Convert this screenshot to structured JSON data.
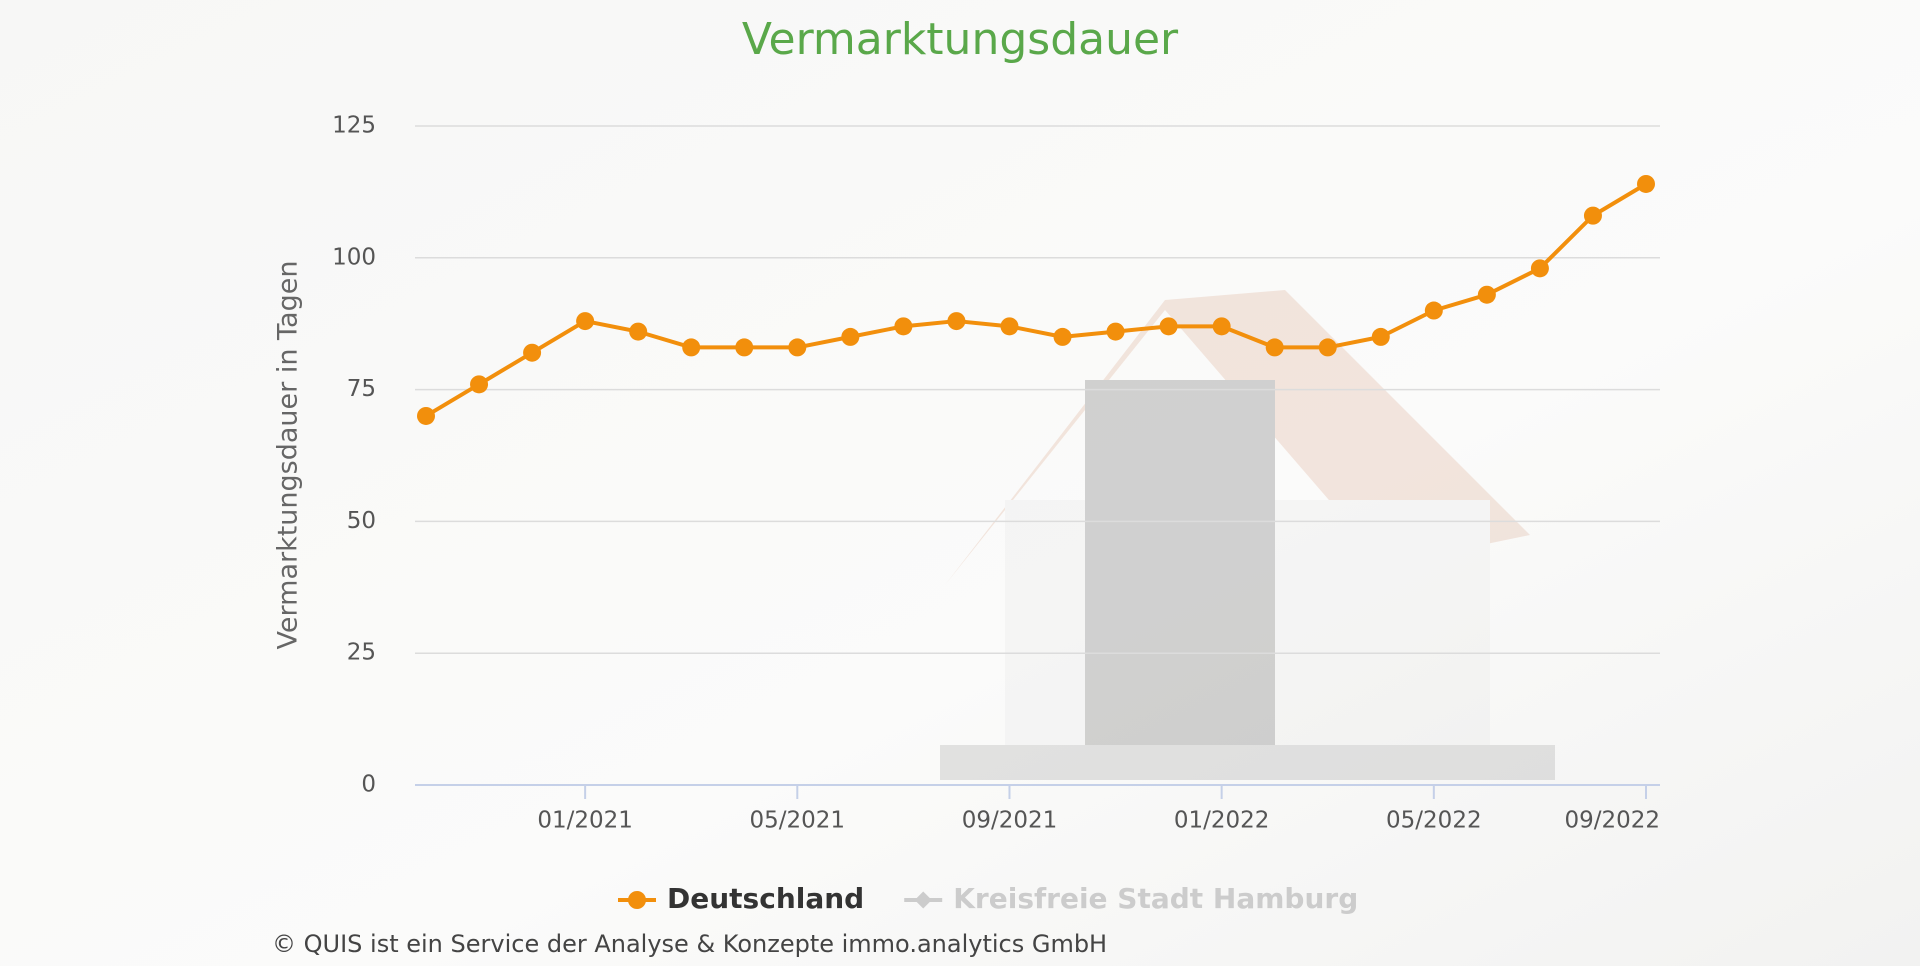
{
  "chart_data": {
    "type": "line",
    "title": "Vermarktungsdauer",
    "y_label": "Vermarktungsdauer in Tagen",
    "categories": [
      null,
      null,
      null,
      "01/2021",
      null,
      null,
      null,
      "05/2021",
      null,
      null,
      null,
      "09/2021",
      null,
      null,
      null,
      "01/2022",
      null,
      null,
      null,
      "05/2022",
      null,
      null,
      null,
      "09/2022"
    ],
    "series": [
      {
        "name": "Deutschland",
        "color": "#f28f0c",
        "values": [
          70,
          76,
          82,
          88,
          86,
          83,
          83,
          83,
          85,
          87,
          88,
          87,
          85,
          86,
          87,
          87,
          83,
          83,
          85,
          90,
          93,
          98,
          108,
          114
        ]
      },
      {
        "name": "Kreisfreie Stadt Hamburg",
        "color": "#cccccc",
        "visible": false
      }
    ],
    "ylim": [
      0,
      125
    ],
    "yticks": [
      0,
      25,
      50,
      75,
      100,
      125
    ],
    "grid": true,
    "footer": "© QUIS ist ein Service der Analyse & Konzepte immo.analytics GmbH"
  }
}
